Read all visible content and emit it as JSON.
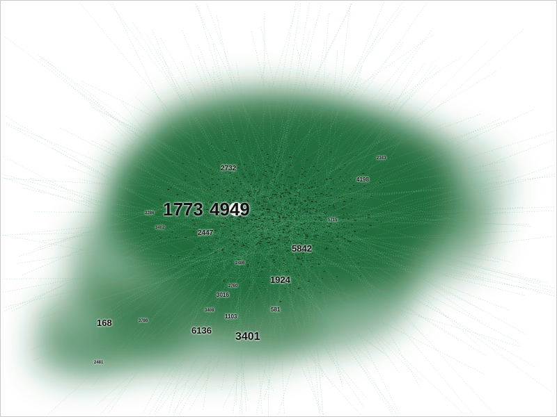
{
  "graph": {
    "edge_color": "#6fb58a",
    "cluster_color": "#1f6b3a",
    "node_color": "#1a1a1a",
    "labels": [
      {
        "id": "1773",
        "text": "1773",
        "size": "xlarge"
      },
      {
        "id": "4949",
        "text": "4949",
        "size": "xlarge"
      },
      {
        "id": "3401",
        "text": "3401",
        "size": "large"
      },
      {
        "id": "6136",
        "text": "6136",
        "size": "medium"
      },
      {
        "id": "5842",
        "text": "5842",
        "size": "medium"
      },
      {
        "id": "1924",
        "text": "1924",
        "size": "medium"
      },
      {
        "id": "168",
        "text": "168",
        "size": "medium"
      },
      {
        "id": "2732",
        "text": "2732",
        "size": "small"
      },
      {
        "id": "2447",
        "text": "2447",
        "size": "small"
      },
      {
        "id": "4198",
        "text": "4198",
        "size": "tiny"
      },
      {
        "id": "3016",
        "text": "3016",
        "size": "tiny"
      },
      {
        "id": "1103",
        "text": "1103",
        "size": "tiny"
      },
      {
        "id": "581",
        "text": "581",
        "size": "tiny"
      },
      {
        "id": "3786",
        "text": "3786",
        "size": "micro"
      },
      {
        "id": "2481",
        "text": "2481",
        "size": "micro"
      },
      {
        "id": "3286",
        "text": "3286",
        "size": "micro"
      },
      {
        "id": "3402",
        "text": "3402",
        "size": "micro"
      },
      {
        "id": "2760",
        "text": "2760",
        "size": "micro"
      },
      {
        "id": "3408",
        "text": "3408",
        "size": "micro"
      },
      {
        "id": "2343",
        "text": "2343",
        "size": "micro"
      },
      {
        "id": "2486",
        "text": "2486",
        "size": "micro"
      },
      {
        "id": "5715",
        "text": "5715",
        "size": "micro"
      }
    ]
  }
}
